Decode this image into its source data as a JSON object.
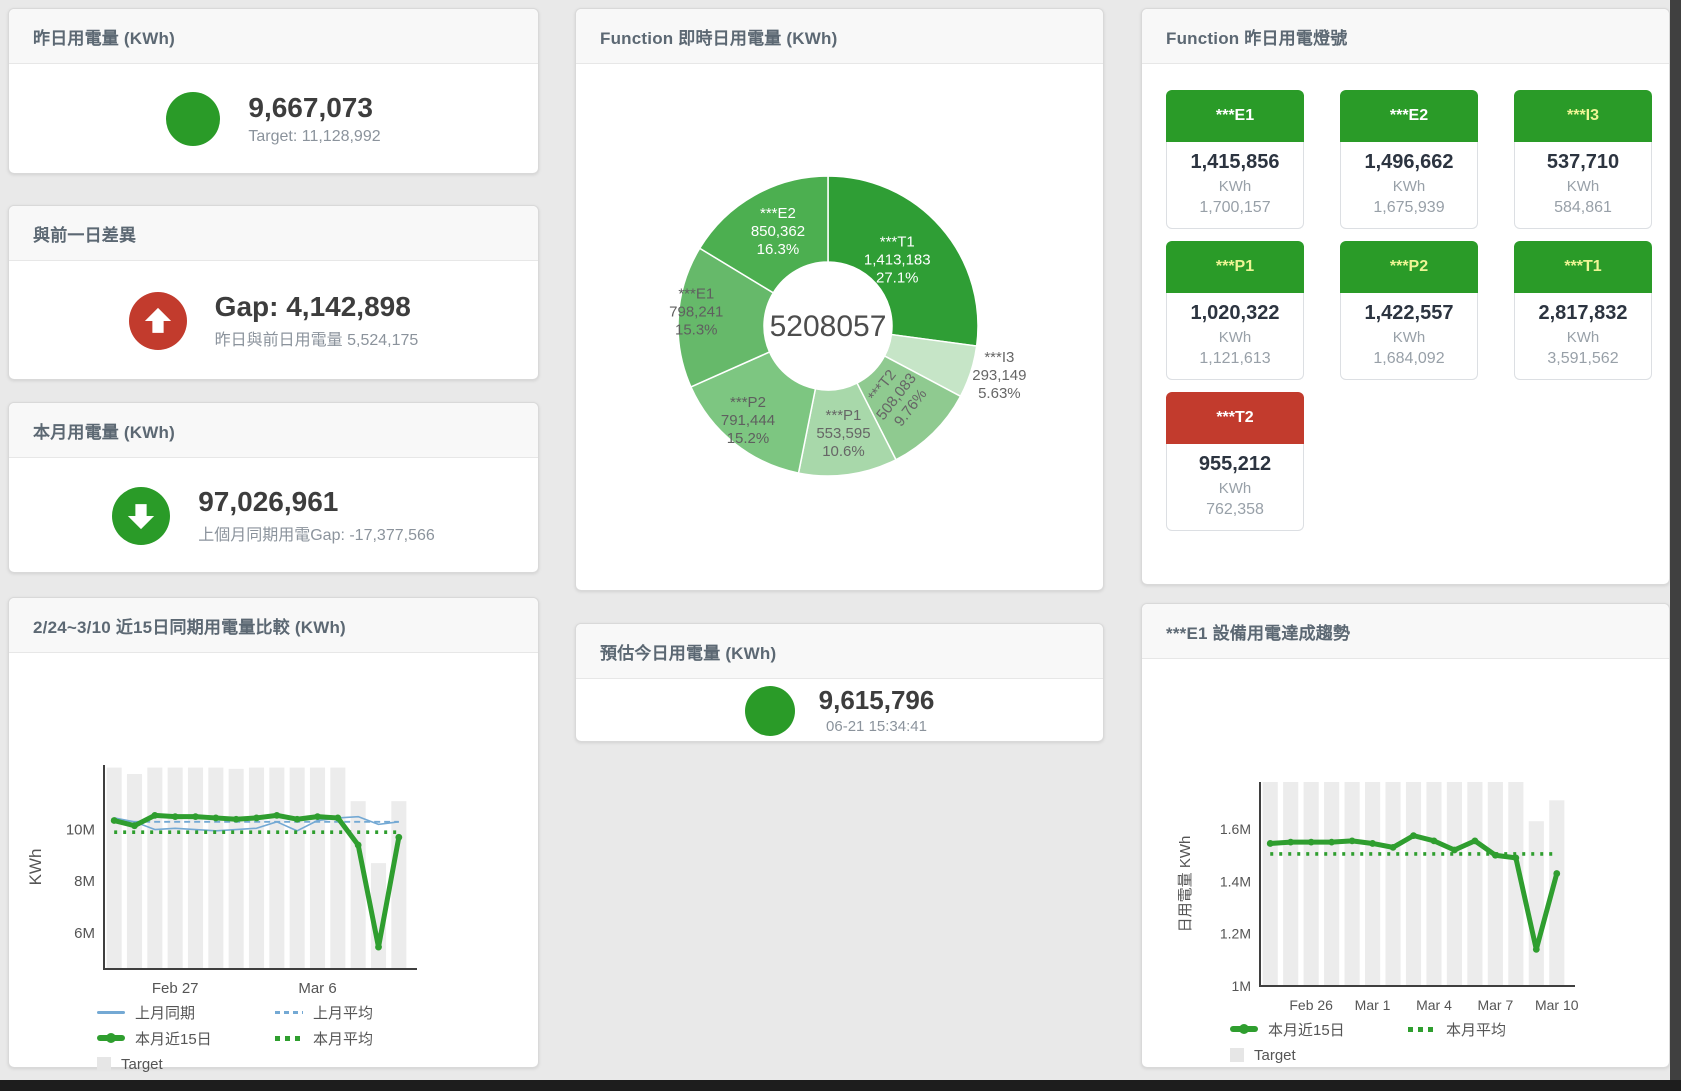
{
  "colors": {
    "green": "#2a9b28",
    "green_line": "#2f9e2f",
    "red": "#c23b2d",
    "blue": "#74a9d4",
    "bar_gray": "#ececec",
    "tile_yellow_label": "#eef595",
    "axis": "#3f3f3f",
    "tick_text": "#555555"
  },
  "ui": {
    "cards": {
      "yesterday": {
        "title": "昨日用電量 (KWh)",
        "value": "9,667,073",
        "subtitle": "Target: 11,128,992"
      },
      "day_gap": {
        "title": "與前一日差異",
        "value": "Gap: 4,142,898",
        "subtitle": "昨日與前日用電量 5,524,175"
      },
      "month": {
        "title": "本月用電量 (KWh)",
        "value": "97,026,961",
        "subtitle": "上個月同期用電Gap: -17,377,566"
      },
      "compare": {
        "title": "2/24~3/10 近15日同期用電量比較 (KWh)"
      },
      "realtime": {
        "title": "Function 即時日用電量 (KWh)"
      },
      "estimate": {
        "title": "預估今日用電量 (KWh)",
        "value": "9,615,796",
        "subtitle": "06-21 15:34:41"
      },
      "lights": {
        "title": "Function 昨日用電燈號"
      },
      "trend": {
        "title": "***E1 設備用電達成趨勢"
      }
    },
    "lights_tiles": [
      {
        "label": "***E1",
        "value": "1,415,856",
        "unit": "KWh",
        "target": "1,700,157",
        "header_bg": "#2a9b28",
        "label_color": "#ffffff"
      },
      {
        "label": "***E2",
        "value": "1,496,662",
        "unit": "KWh",
        "target": "1,675,939",
        "header_bg": "#2a9b28",
        "label_color": "#ffffff"
      },
      {
        "label": "***I3",
        "value": "537,710",
        "unit": "KWh",
        "target": "584,861",
        "header_bg": "#2a9b28",
        "label_color": "#eef595"
      },
      {
        "label": "***P1",
        "value": "1,020,322",
        "unit": "KWh",
        "target": "1,121,613",
        "header_bg": "#2a9b28",
        "label_color": "#eef595"
      },
      {
        "label": "***P2",
        "value": "1,422,557",
        "unit": "KWh",
        "target": "1,684,092",
        "header_bg": "#2a9b28",
        "label_color": "#eef595"
      },
      {
        "label": "***T1",
        "value": "2,817,832",
        "unit": "KWh",
        "target": "3,591,562",
        "header_bg": "#2a9b28",
        "label_color": "#eef595"
      },
      {
        "label": "***T2",
        "value": "955,212",
        "unit": "KWh",
        "target": "762,358",
        "header_bg": "#c23b2d",
        "label_color": "#ffffff"
      }
    ]
  },
  "chart_data": [
    {
      "id": "realtime_donut",
      "type": "pie",
      "title": "Function 即時日用電量 (KWh)",
      "center_label": "5208057",
      "slices": [
        {
          "name": "***T1",
          "value": 1413183,
          "value_label": "1,413,183",
          "pct_label": "27.1%",
          "color": "#2f9e35",
          "label_color": "#ffffff",
          "label_r": 92
        },
        {
          "name": "***I3",
          "value": 293149,
          "value_label": "293,149",
          "pct_label": "5.63%",
          "color": "#c6e5c7",
          "label_color": "#666666",
          "label_r": 180
        },
        {
          "name": "***T2",
          "value": 508083,
          "value_label": "508,083",
          "pct_label": "9.76%",
          "color": "#8fca90",
          "label_color": "#666666",
          "label_r": 104,
          "label_rotate": -52
        },
        {
          "name": "***P1",
          "value": 553595,
          "value_label": "553,595",
          "pct_label": "10.6%",
          "color": "#a8d8aa",
          "label_color": "#666666",
          "label_r": 114
        },
        {
          "name": "***P2",
          "value": 791444,
          "value_label": "791,444",
          "pct_label": "15.2%",
          "color": "#7dc681",
          "label_color": "#5f5f5f",
          "label_r": 128
        },
        {
          "name": "***E1",
          "value": 798241,
          "value_label": "798,241",
          "pct_label": "15.3%",
          "color": "#66b96a",
          "label_color": "#5f5f5f",
          "label_r": 132
        },
        {
          "name": "***E2",
          "value": 850362,
          "value_label": "850,362",
          "pct_label": "16.3%",
          "color": "#4caf50",
          "label_color": "#ffffff",
          "label_r": 102
        }
      ]
    },
    {
      "id": "compare15",
      "type": "line",
      "title": "2/24~3/10 近15日同期用電量比較 (KWh)",
      "ylabel": "KWh",
      "ylim": [
        4.6,
        12.5
      ],
      "yticks": [
        {
          "v": 6,
          "label": "6M"
        },
        {
          "v": 8,
          "label": "8M"
        },
        {
          "v": 10,
          "label": "10M"
        }
      ],
      "xticks": [
        {
          "i": 3,
          "label": "Feb 27"
        },
        {
          "i": 10,
          "label": "Mar 6"
        }
      ],
      "grid": false,
      "legend_position": "bottom-left",
      "target_bars": {
        "name": "Target",
        "color": "#ececec",
        "values": [
          12.4,
          12.15,
          12.4,
          12.4,
          12.4,
          12.4,
          12.35,
          12.4,
          12.4,
          12.4,
          12.4,
          12.4,
          11.1,
          8.7,
          11.1
        ]
      },
      "series": [
        {
          "name": "上月同期",
          "style": "line-thin",
          "color": "#74a9d4",
          "values": [
            10.45,
            10.3,
            10.0,
            10.05,
            10.0,
            9.95,
            10.0,
            10.05,
            10.3,
            9.95,
            10.35,
            10.45,
            10.5,
            10.2,
            10.3
          ]
        },
        {
          "name": "上月平均",
          "style": "line-dashed",
          "color": "#74a9d4",
          "values": [
            10.3,
            10.3,
            10.3,
            10.3,
            10.3,
            10.3,
            10.3,
            10.3,
            10.3,
            10.3,
            10.3,
            10.3,
            10.3,
            10.3,
            10.3
          ]
        },
        {
          "name": "本月近15日",
          "style": "line-thick-dot",
          "color": "#2f9e2f",
          "values": [
            10.35,
            10.15,
            10.55,
            10.5,
            10.5,
            10.45,
            10.4,
            10.45,
            10.55,
            10.4,
            10.5,
            10.45,
            9.4,
            5.45,
            9.7
          ]
        },
        {
          "name": "本月平均",
          "style": "line-dotted",
          "color": "#2f9e2f",
          "values": [
            9.9,
            9.9,
            9.9,
            9.9,
            9.9,
            9.9,
            9.9,
            9.9,
            9.9,
            9.9,
            9.9,
            9.9,
            9.9,
            9.9,
            9.9
          ]
        }
      ],
      "legend": [
        {
          "label": "上月同期",
          "style": "line-thin",
          "color": "#74a9d4"
        },
        {
          "label": "上月平均",
          "style": "line-dashed",
          "color": "#74a9d4"
        },
        {
          "label": "本月近15日",
          "style": "line-thick-dot",
          "color": "#2f9e2f"
        },
        {
          "label": "本月平均",
          "style": "line-dotted",
          "color": "#2f9e2f"
        },
        {
          "label": "Target",
          "style": "square",
          "color": "#e6e6e6"
        }
      ]
    },
    {
      "id": "e1_trend",
      "type": "line",
      "title": "***E1 設備用電達成趨勢",
      "ylabel": "日用電量 KWh",
      "ylim": [
        1.0,
        1.78
      ],
      "yticks": [
        {
          "v": 1,
          "label": "1M"
        },
        {
          "v": 1.2,
          "label": "1.2M"
        },
        {
          "v": 1.4,
          "label": "1.4M"
        },
        {
          "v": 1.6,
          "label": "1.6M"
        }
      ],
      "xticks": [
        {
          "i": 2,
          "label": "Feb 26"
        },
        {
          "i": 5,
          "label": "Mar 1"
        },
        {
          "i": 8,
          "label": "Mar 4"
        },
        {
          "i": 11,
          "label": "Mar 7"
        },
        {
          "i": 14,
          "label": "Mar 10"
        }
      ],
      "grid": false,
      "legend_position": "bottom-left",
      "target_bars": {
        "name": "Target",
        "color": "#ececec",
        "values": [
          1.78,
          1.78,
          1.78,
          1.78,
          1.78,
          1.78,
          1.78,
          1.78,
          1.78,
          1.78,
          1.78,
          1.78,
          1.78,
          1.63,
          1.71
        ]
      },
      "series": [
        {
          "name": "本月近15日",
          "style": "line-thick-dot",
          "color": "#2f9e2f",
          "values": [
            1.545,
            1.55,
            1.55,
            1.55,
            1.555,
            1.545,
            1.53,
            1.575,
            1.555,
            1.52,
            1.555,
            1.5,
            1.49,
            1.14,
            1.43
          ]
        },
        {
          "name": "本月平均",
          "style": "line-dotted",
          "color": "#2f9e2f",
          "values": [
            1.505,
            1.505,
            1.505,
            1.505,
            1.505,
            1.505,
            1.505,
            1.505,
            1.505,
            1.505,
            1.505,
            1.505,
            1.505,
            1.505,
            1.505
          ]
        }
      ],
      "legend": [
        {
          "label": "本月近15日",
          "style": "line-thick-dot",
          "color": "#2f9e2f"
        },
        {
          "label": "本月平均",
          "style": "line-dotted",
          "color": "#2f9e2f"
        },
        {
          "label": "Target",
          "style": "square",
          "color": "#e6e6e6"
        }
      ]
    }
  ]
}
